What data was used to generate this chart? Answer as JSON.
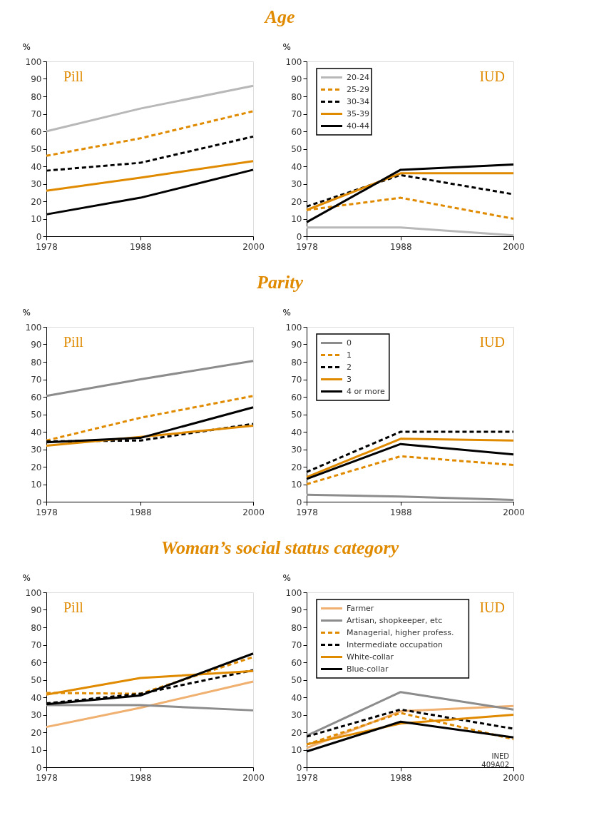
{
  "chart_data": [
    {
      "type": "line",
      "title": "Age",
      "ylabel": "%",
      "annotations": [
        "Pill"
      ],
      "x": [
        1978,
        1988,
        2000
      ],
      "xlim": [
        1978,
        2000
      ],
      "xticks": [
        1978,
        1988,
        2000
      ],
      "ylim": [
        0,
        100
      ],
      "yticks": [
        0,
        10,
        20,
        30,
        40,
        50,
        60,
        70,
        80,
        90,
        100
      ],
      "grid": false,
      "legend": false,
      "series": [
        {
          "color": "#b8b8b8",
          "line_style": "solid",
          "values": [
            60,
            73,
            86
          ]
        },
        {
          "color": "#e08a00",
          "line_style": "dashed",
          "values": [
            46,
            56,
            71.5
          ]
        },
        {
          "color": "#000000",
          "line_style": "dashed",
          "values": [
            37.5,
            42,
            57
          ]
        },
        {
          "color": "#e08a00",
          "line_style": "solid",
          "values": [
            26,
            33.5,
            43
          ]
        },
        {
          "color": "#000000",
          "line_style": "solid",
          "values": [
            12.5,
            22,
            38
          ]
        }
      ]
    },
    {
      "type": "line",
      "ylabel": "%",
      "annotations": [
        "IUD"
      ],
      "x": [
        1978,
        1988,
        2000
      ],
      "xlim": [
        1978,
        2000
      ],
      "xticks": [
        1978,
        1988,
        2000
      ],
      "ylim": [
        0,
        100
      ],
      "yticks": [
        0,
        10,
        20,
        30,
        40,
        50,
        60,
        70,
        80,
        90,
        100
      ],
      "grid": false,
      "legend": "top left",
      "series": [
        {
          "name": "20-24",
          "color": "#b8b8b8",
          "line_style": "solid",
          "values": [
            5,
            5,
            0.5
          ]
        },
        {
          "name": "25-29",
          "color": "#e08a00",
          "line_style": "dashed",
          "values": [
            15,
            22,
            10
          ]
        },
        {
          "name": "30-34",
          "color": "#000000",
          "line_style": "dashed",
          "values": [
            17,
            35,
            24
          ]
        },
        {
          "name": "35-39",
          "color": "#e08a00",
          "line_style": "solid",
          "values": [
            15,
            36,
            36
          ]
        },
        {
          "name": "40-44",
          "color": "#000000",
          "line_style": "solid",
          "values": [
            8,
            38,
            41
          ]
        }
      ]
    },
    {
      "type": "line",
      "title": "Parity",
      "ylabel": "%",
      "annotations": [
        "Pill"
      ],
      "x": [
        1978,
        1988,
        2000
      ],
      "xlim": [
        1978,
        2000
      ],
      "xticks": [
        1978,
        1988,
        2000
      ],
      "ylim": [
        0,
        100
      ],
      "yticks": [
        0,
        10,
        20,
        30,
        40,
        50,
        60,
        70,
        80,
        90,
        100
      ],
      "grid": false,
      "legend": false,
      "series": [
        {
          "color": "#8c8c8c",
          "line_style": "solid",
          "values": [
            60.5,
            70,
            80.5
          ]
        },
        {
          "color": "#e08a00",
          "line_style": "dashed",
          "values": [
            35,
            48,
            60.5
          ]
        },
        {
          "color": "#000000",
          "line_style": "dashed",
          "values": [
            34.5,
            35,
            44.5
          ]
        },
        {
          "color": "#e08a00",
          "line_style": "solid",
          "values": [
            32,
            37,
            43.5
          ]
        },
        {
          "color": "#000000",
          "line_style": "solid",
          "values": [
            34,
            36.5,
            54
          ]
        }
      ]
    },
    {
      "type": "line",
      "ylabel": "%",
      "annotations": [
        "IUD"
      ],
      "x": [
        1978,
        1988,
        2000
      ],
      "xlim": [
        1978,
        2000
      ],
      "xticks": [
        1978,
        1988,
        2000
      ],
      "ylim": [
        0,
        100
      ],
      "yticks": [
        0,
        10,
        20,
        30,
        40,
        50,
        60,
        70,
        80,
        90,
        100
      ],
      "grid": false,
      "legend": "top left",
      "series": [
        {
          "name": "0",
          "color": "#8c8c8c",
          "line_style": "solid",
          "values": [
            4,
            3,
            1
          ]
        },
        {
          "name": "1",
          "color": "#e08a00",
          "line_style": "dashed",
          "values": [
            10,
            26,
            21
          ]
        },
        {
          "name": "2",
          "color": "#000000",
          "line_style": "dashed",
          "values": [
            17,
            40,
            40
          ]
        },
        {
          "name": "3",
          "color": "#e08a00",
          "line_style": "solid",
          "values": [
            14,
            36,
            35
          ]
        },
        {
          "name": "4 or more",
          "color": "#000000",
          "line_style": "solid",
          "values": [
            13,
            33,
            27
          ]
        }
      ]
    },
    {
      "type": "line",
      "title": "Woman’s social status category",
      "ylabel": "%",
      "annotations": [
        "Pill"
      ],
      "x": [
        1978,
        1988,
        2000
      ],
      "xlim": [
        1978,
        2000
      ],
      "xticks": [
        1978,
        1988,
        2000
      ],
      "ylim": [
        0,
        100
      ],
      "yticks": [
        0,
        10,
        20,
        30,
        40,
        50,
        60,
        70,
        80,
        90,
        100
      ],
      "grid": false,
      "legend": false,
      "series": [
        {
          "color": "#f0b070",
          "line_style": "solid",
          "values": [
            23,
            34,
            49
          ]
        },
        {
          "color": "#8c8c8c",
          "line_style": "solid",
          "values": [
            35.5,
            35.5,
            32.5
          ]
        },
        {
          "color": "#e08a00",
          "line_style": "dashed",
          "values": [
            42.5,
            42,
            63
          ]
        },
        {
          "color": "#000000",
          "line_style": "dashed",
          "values": [
            36.5,
            42,
            55.5
          ]
        },
        {
          "color": "#e08a00",
          "line_style": "solid",
          "values": [
            41.5,
            51,
            55
          ]
        },
        {
          "color": "#000000",
          "line_style": "solid",
          "values": [
            36,
            41,
            65
          ]
        }
      ]
    },
    {
      "type": "line",
      "ylabel": "%",
      "annotations": [
        "IUD",
        "INED\n409A02"
      ],
      "x": [
        1978,
        1988,
        2000
      ],
      "xlim": [
        1978,
        2000
      ],
      "xticks": [
        1978,
        1988,
        2000
      ],
      "ylim": [
        0,
        100
      ],
      "yticks": [
        0,
        10,
        20,
        30,
        40,
        50,
        60,
        70,
        80,
        90,
        100
      ],
      "grid": false,
      "legend": "top left",
      "series": [
        {
          "name": "Farmer",
          "color": "#f0b070",
          "line_style": "solid",
          "values": [
            11,
            32,
            35
          ]
        },
        {
          "name": "Artisan, shopkeeper, etc",
          "color": "#8c8c8c",
          "line_style": "solid",
          "values": [
            18,
            43,
            33
          ]
        },
        {
          "name": "Managerial, higher profess.",
          "color": "#e08a00",
          "line_style": "dashed",
          "values": [
            13,
            31,
            16
          ]
        },
        {
          "name": "Intermediate occupation",
          "color": "#000000",
          "line_style": "dashed",
          "values": [
            17.5,
            33,
            22
          ]
        },
        {
          "name": "White-collar",
          "color": "#e08a00",
          "line_style": "solid",
          "values": [
            13,
            25,
            30
          ]
        },
        {
          "name": "Blue-collar",
          "color": "#000000",
          "line_style": "solid",
          "values": [
            9,
            26,
            17
          ]
        }
      ]
    }
  ]
}
